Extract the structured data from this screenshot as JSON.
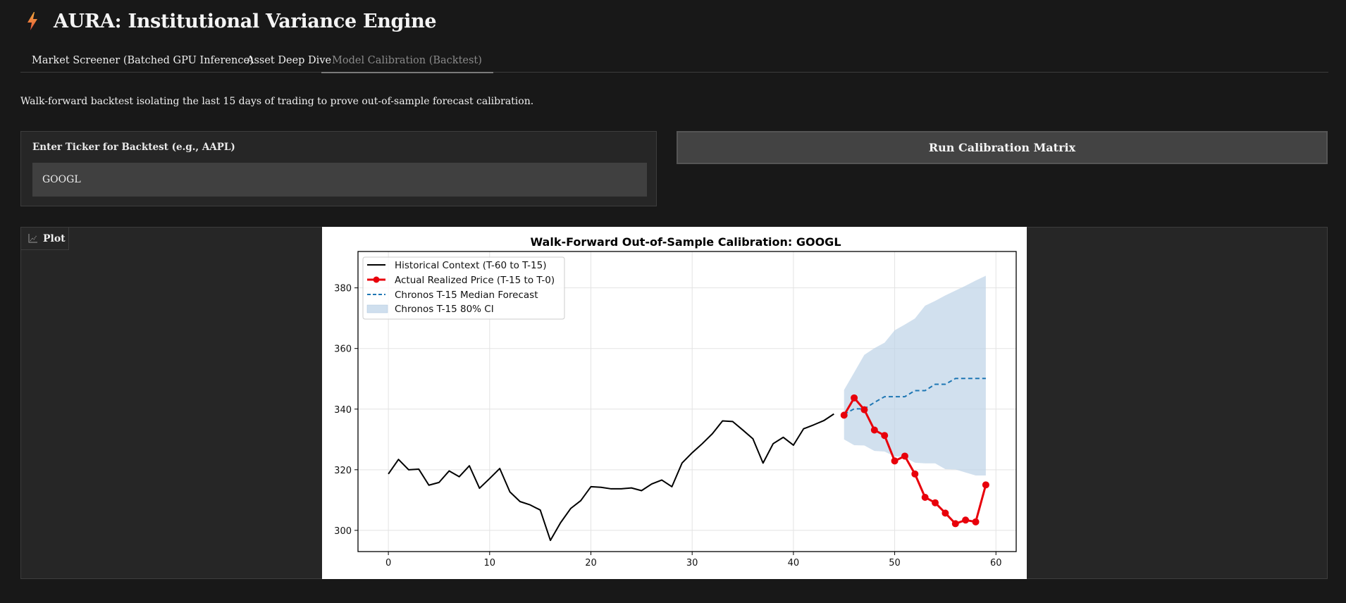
{
  "header": {
    "icon": "lightning-bolt-icon",
    "title": "AURA: Institutional Variance Engine"
  },
  "tabs": [
    {
      "label": "Market Screener (Batched GPU Inference)",
      "active": false
    },
    {
      "label": "Asset Deep Dive",
      "active": false
    },
    {
      "label": "Model Calibration (Backtest)",
      "active": true
    }
  ],
  "description": "Walk-forward backtest isolating the last 15 days of trading to prove out-of-sample forecast calibration.",
  "ticker_input": {
    "label": "Enter Ticker for Backtest (e.g., AAPL)",
    "value": "GOOGL"
  },
  "run_button": {
    "label": "Run Calibration Matrix"
  },
  "plot_panel": {
    "label": "Plot",
    "icon": "chart-icon"
  },
  "colors": {
    "historical": "#000000",
    "actual": "#e8000b",
    "median": "#1f77b4",
    "ci_fill": "#bfd4e8",
    "accent_bolt_top": "#f2a33a",
    "accent_bolt_bottom": "#e8553a"
  },
  "chart_data": {
    "type": "line",
    "title": "Walk-Forward Out-of-Sample Calibration: GOOGL",
    "xlabel": "",
    "ylabel": "",
    "xlim": [
      -3,
      62
    ],
    "ylim": [
      293,
      392
    ],
    "xticks": [
      0,
      10,
      20,
      30,
      40,
      50,
      60
    ],
    "yticks": [
      300,
      320,
      340,
      360,
      380
    ],
    "grid": true,
    "legend_position": "top-left",
    "series": [
      {
        "name": "Historical Context (T-60 to T-15)",
        "style": "solid",
        "x": [
          0,
          1,
          2,
          3,
          4,
          5,
          6,
          7,
          8,
          9,
          10,
          11,
          12,
          13,
          14,
          15,
          16,
          17,
          18,
          19,
          20,
          21,
          22,
          23,
          24,
          25,
          26,
          27,
          28,
          29,
          30,
          31,
          32,
          33,
          34,
          35,
          36,
          37,
          38,
          39,
          40,
          41,
          42,
          43,
          44
        ],
        "values": [
          318.6,
          323.4,
          320.0,
          320.2,
          314.9,
          315.8,
          319.6,
          317.7,
          321.3,
          313.9,
          317.1,
          320.4,
          312.7,
          309.5,
          308.4,
          306.7,
          296.7,
          302.5,
          307.2,
          309.8,
          314.4,
          314.2,
          313.7,
          313.7,
          314.0,
          313.1,
          315.3,
          316.6,
          314.4,
          322.2,
          325.6,
          328.6,
          331.9,
          336.1,
          335.9,
          333.1,
          330.2,
          322.2,
          328.6,
          330.7,
          328.1,
          333.5,
          334.8,
          336.2,
          338.4
        ]
      },
      {
        "name": "Actual Realized Price (T-15 to T-0)",
        "style": "solid-markers",
        "x": [
          45,
          46,
          47,
          48,
          49,
          50,
          51,
          52,
          53,
          54,
          55,
          56,
          57,
          58,
          59
        ],
        "values": [
          338.0,
          343.7,
          339.8,
          333.1,
          331.3,
          322.9,
          324.5,
          318.6,
          310.9,
          309.1,
          305.7,
          302.2,
          303.4,
          302.8,
          315.0
        ]
      },
      {
        "name": "Chronos T-15 Median Forecast",
        "style": "dashed",
        "x": [
          45,
          46,
          47,
          48,
          49,
          50,
          51,
          52,
          53,
          54,
          55,
          56,
          57,
          58,
          59
        ],
        "values": [
          338.3,
          340.1,
          340.1,
          342.2,
          344.1,
          344.1,
          344.1,
          346.1,
          346.1,
          348.2,
          348.2,
          350.1,
          350.1,
          350.1,
          350.1
        ]
      },
      {
        "name": "Chronos T-15 80% CI",
        "style": "band",
        "x": [
          45,
          46,
          47,
          48,
          49,
          50,
          51,
          52,
          53,
          54,
          55,
          56,
          57,
          58,
          59
        ],
        "lower": [
          330.0,
          328.1,
          328.0,
          326.2,
          326.0,
          324.4,
          324.1,
          322.3,
          322.1,
          322.1,
          320.2,
          320.1,
          319.1,
          318.1,
          318.1
        ],
        "upper": [
          346.3,
          352.1,
          357.9,
          360.1,
          361.9,
          366.0,
          367.9,
          369.9,
          374.1,
          375.7,
          377.5,
          379.1,
          380.7,
          382.4,
          384.0
        ]
      }
    ]
  }
}
